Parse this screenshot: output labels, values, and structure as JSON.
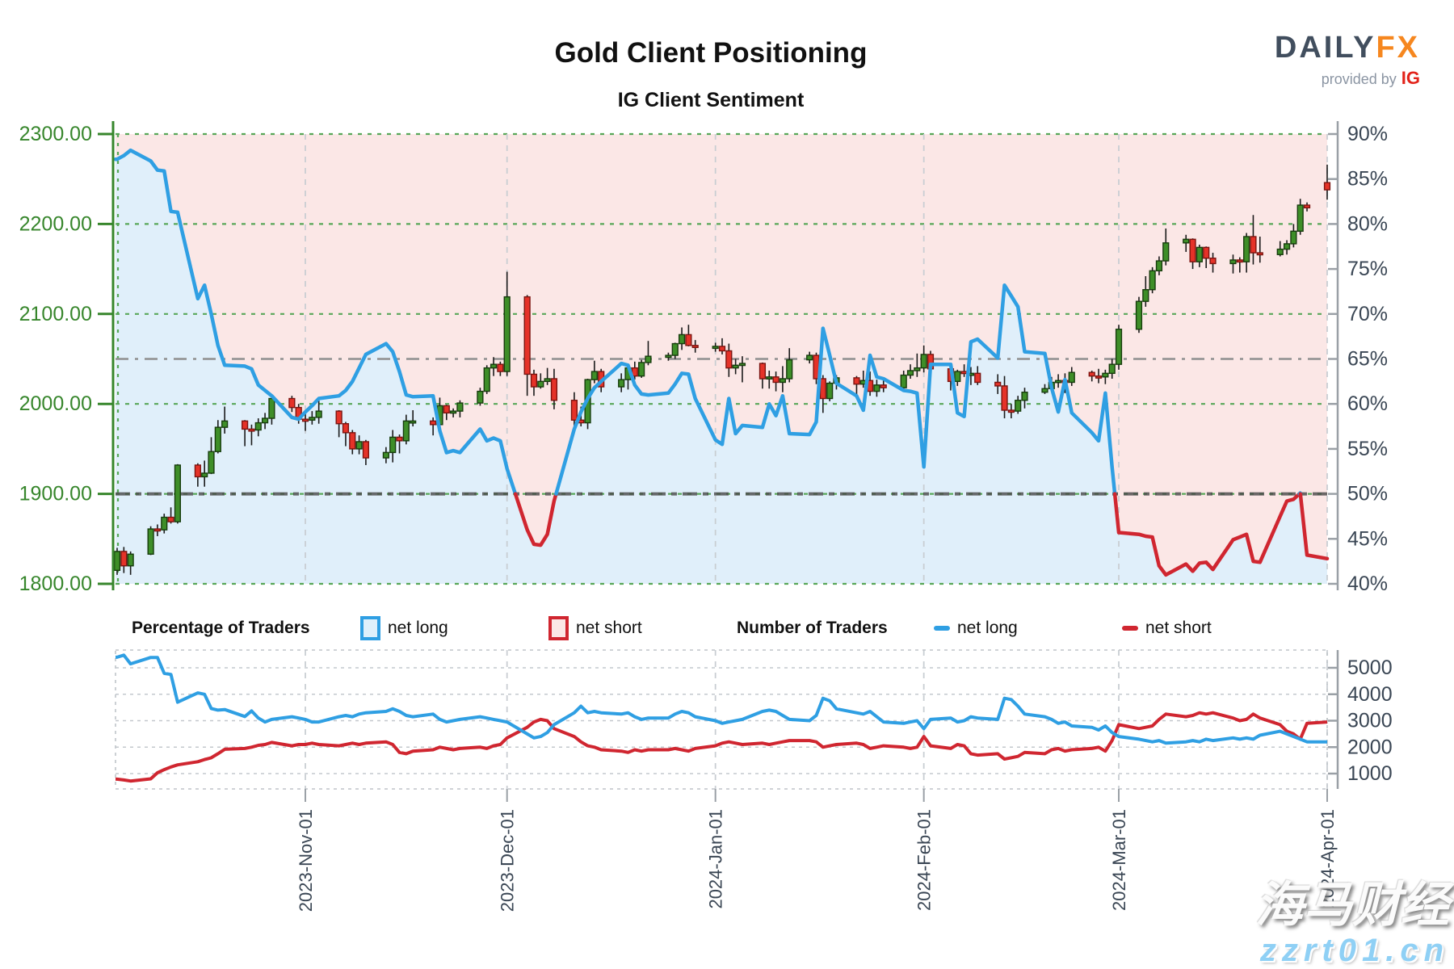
{
  "header": {
    "title": "Gold Client Positioning",
    "subtitle": "IG Client Sentiment",
    "logo": {
      "daily": "DAILY",
      "fx": "FX",
      "provided_by": "provided by",
      "ig": "IG"
    }
  },
  "legend": {
    "pct_group": "Percentage of Traders",
    "count_group": "Number of Traders",
    "net_long": "net long",
    "net_short": "net short"
  },
  "watermark": {
    "line1": "海马财经",
    "line2": "zzrt01.cn"
  },
  "colors": {
    "net_long_line": "#2f9fe3",
    "net_short_line": "#d02630",
    "long_fill": "#e0effa",
    "short_fill": "#fbe7e6",
    "candle_up": "#3e8e28",
    "candle_down": "#e53228",
    "price_axis_green": "#37862c",
    "grid_green": "#58a758",
    "slate_text": "#3a4654",
    "axis_gray": "#9aa0a6",
    "month_grid": "#c9ced3",
    "ref_gray": "#8f8f8f",
    "ref_dark": "#474747"
  },
  "chart_data": {
    "type": "candlestick+line",
    "title": "Gold Client Positioning",
    "subtitle": "IG Client Sentiment",
    "legend_position": "between-panels",
    "grid": true,
    "x_axis": {
      "tick_dates": [
        "2023-11-01",
        "2023-12-01",
        "2024-01-01",
        "2024-02-01",
        "2024-03-01",
        "2024-04-01"
      ],
      "tick_labels": [
        "2023-Nov-01",
        "2023-Dec-01",
        "2024-Jan-01",
        "2024-Feb-01",
        "2024-Mar-01",
        "2024-Apr-01"
      ]
    },
    "main_panel": {
      "price_axis": {
        "side": "left",
        "min": 1800,
        "max": 2300,
        "tick_labels": [
          "2300.00",
          "2200.00",
          "2100.00",
          "2000.00",
          "1900.00",
          "1800.00"
        ]
      },
      "pct_axis": {
        "side": "right",
        "min": 40,
        "max": 90,
        "tick_step": 5,
        "tick_labels": [
          "90%",
          "85%",
          "80%",
          "75%",
          "70%",
          "65%",
          "60%",
          "55%",
          "50%",
          "45%",
          "40%"
        ]
      },
      "reference_lines_pct": [
        {
          "value": 65,
          "style": "gray-dashdot"
        },
        {
          "value": 50,
          "style": "dark-dashdot"
        }
      ],
      "sentiment_rule": "net_long_pct drawn blue when >= 50, red when < 50; area below line shaded blue, above line shaded pink"
    },
    "count_panel": {
      "count_axis": {
        "side": "right",
        "tick_labels": [
          "5000",
          "4000",
          "3000",
          "2000",
          "1000"
        ],
        "tick_values": [
          5000,
          4000,
          3000,
          2000,
          1000
        ]
      },
      "series_names": [
        "net long",
        "net short"
      ]
    },
    "dates": [
      "2023-10-04",
      "2023-10-05",
      "2023-10-06",
      "2023-10-09",
      "2023-10-10",
      "2023-10-11",
      "2023-10-12",
      "2023-10-13",
      "2023-10-16",
      "2023-10-17",
      "2023-10-18",
      "2023-10-19",
      "2023-10-20",
      "2023-10-23",
      "2023-10-24",
      "2023-10-25",
      "2023-10-26",
      "2023-10-27",
      "2023-10-30",
      "2023-10-31",
      "2023-11-01",
      "2023-11-02",
      "2023-11-03",
      "2023-11-06",
      "2023-11-07",
      "2023-11-08",
      "2023-11-09",
      "2023-11-10",
      "2023-11-13",
      "2023-11-14",
      "2023-11-15",
      "2023-11-16",
      "2023-11-17",
      "2023-11-20",
      "2023-11-21",
      "2023-11-22",
      "2023-11-23",
      "2023-11-24",
      "2023-11-27",
      "2023-11-28",
      "2023-11-29",
      "2023-11-30",
      "2023-12-01",
      "2023-12-04",
      "2023-12-05",
      "2023-12-06",
      "2023-12-07",
      "2023-12-08",
      "2023-12-11",
      "2023-12-12",
      "2023-12-13",
      "2023-12-14",
      "2023-12-15",
      "2023-12-18",
      "2023-12-19",
      "2023-12-20",
      "2023-12-21",
      "2023-12-22",
      "2023-12-25",
      "2023-12-26",
      "2023-12-27",
      "2023-12-28",
      "2023-12-29",
      "2024-01-01",
      "2024-01-02",
      "2024-01-03",
      "2024-01-04",
      "2024-01-05",
      "2024-01-08",
      "2024-01-09",
      "2024-01-10",
      "2024-01-11",
      "2024-01-12",
      "2024-01-15",
      "2024-01-16",
      "2024-01-17",
      "2024-01-18",
      "2024-01-19",
      "2024-01-22",
      "2024-01-23",
      "2024-01-24",
      "2024-01-25",
      "2024-01-26",
      "2024-01-29",
      "2024-01-30",
      "2024-01-31",
      "2024-02-01",
      "2024-02-02",
      "2024-02-05",
      "2024-02-06",
      "2024-02-07",
      "2024-02-08",
      "2024-02-09",
      "2024-02-12",
      "2024-02-13",
      "2024-02-14",
      "2024-02-15",
      "2024-02-16",
      "2024-02-19",
      "2024-02-20",
      "2024-02-21",
      "2024-02-22",
      "2024-02-23",
      "2024-02-26",
      "2024-02-27",
      "2024-02-28",
      "2024-02-29",
      "2024-03-01",
      "2024-03-04",
      "2024-03-05",
      "2024-03-06",
      "2024-03-07",
      "2024-03-08",
      "2024-03-11",
      "2024-03-12",
      "2024-03-13",
      "2024-03-14",
      "2024-03-15",
      "2024-03-18",
      "2024-03-19",
      "2024-03-20",
      "2024-03-21",
      "2024-03-22",
      "2024-03-25",
      "2024-03-26",
      "2024-03-27",
      "2024-03-28",
      "2024-03-29",
      "2024-04-01"
    ],
    "net_long_pct": [
      87.2,
      87.6,
      88.2,
      87.0,
      86.0,
      85.9,
      81.4,
      81.3,
      71.7,
      73.2,
      70.0,
      66.5,
      64.3,
      64.2,
      63.9,
      62.1,
      61.5,
      60.9,
      58.5,
      58.3,
      59.1,
      59.8,
      60.6,
      60.9,
      61.5,
      62.5,
      64.0,
      65.5,
      66.7,
      65.8,
      63.6,
      61.0,
      60.8,
      60.9,
      57.0,
      54.6,
      54.8,
      54.6,
      57.2,
      55.9,
      56.2,
      55.9,
      52.8,
      46.0,
      44.4,
      44.3,
      45.5,
      49.2,
      57.2,
      59.1,
      60.6,
      61.8,
      62.5,
      64.5,
      64.3,
      62.1,
      61.1,
      61.0,
      61.2,
      62.2,
      63.4,
      63.3,
      60.6,
      56.0,
      55.5,
      60.6,
      56.7,
      57.6,
      57.4,
      60.0,
      58.7,
      60.9,
      56.7,
      56.6,
      58.0,
      68.4,
      65.4,
      62.3,
      60.9,
      59.3,
      65.4,
      63.0,
      62.8,
      61.5,
      61.4,
      61.2,
      53.0,
      64.4,
      64.4,
      59.0,
      58.6,
      66.9,
      67.2,
      65.1,
      73.2,
      72.0,
      70.8,
      65.8,
      65.6,
      61.8,
      59.1,
      62.7,
      59.0,
      56.8,
      55.9,
      61.2,
      53.0,
      45.7,
      45.5,
      45.3,
      45.2,
      42.0,
      41.0,
      42.2,
      41.4,
      42.3,
      42.4,
      41.6,
      44.9,
      45.2,
      45.5,
      42.5,
      42.4,
      47.5,
      49.2,
      49.4,
      50.1,
      43.2,
      42.8
    ],
    "ohlc": [
      [
        1815,
        1840,
        1810,
        1836
      ],
      [
        1836,
        1841,
        1812,
        1820
      ],
      [
        1820,
        1836,
        1810,
        1833
      ],
      [
        1833,
        1864,
        1832,
        1861
      ],
      [
        1861,
        1866,
        1853,
        1860
      ],
      [
        1860,
        1878,
        1856,
        1874
      ],
      [
        1874,
        1885,
        1867,
        1869
      ],
      [
        1869,
        1933,
        1867,
        1932
      ],
      [
        1932,
        1934,
        1908,
        1919
      ],
      [
        1919,
        1937,
        1908,
        1923
      ],
      [
        1923,
        1963,
        1922,
        1947
      ],
      [
        1947,
        1982,
        1945,
        1974
      ],
      [
        1974,
        1997,
        1967,
        1981
      ],
      [
        1981,
        1982,
        1953,
        1972
      ],
      [
        1972,
        1977,
        1954,
        1971
      ],
      [
        1971,
        1984,
        1964,
        1979
      ],
      [
        1979,
        1990,
        1972,
        1984
      ],
      [
        1984,
        2009,
        1977,
        2006
      ],
      [
        2006,
        2009,
        1991,
        1996
      ],
      [
        1996,
        2000,
        1978,
        1983
      ],
      [
        1983,
        1992,
        1970,
        1982
      ],
      [
        1982,
        1992,
        1977,
        1985
      ],
      [
        1985,
        2004,
        1978,
        1992
      ],
      [
        1992,
        1993,
        1963,
        1978
      ],
      [
        1978,
        1980,
        1953,
        1968
      ],
      [
        1968,
        1971,
        1944,
        1950
      ],
      [
        1950,
        1965,
        1944,
        1958
      ],
      [
        1958,
        1960,
        1932,
        1940
      ],
      [
        1940,
        1952,
        1934,
        1946
      ],
      [
        1946,
        1971,
        1935,
        1963
      ],
      [
        1963,
        1966,
        1945,
        1959
      ],
      [
        1959,
        1988,
        1955,
        1981
      ],
      [
        1981,
        1993,
        1975,
        1981
      ],
      [
        1981,
        1985,
        1965,
        1977
      ],
      [
        1977,
        2007,
        1975,
        1998
      ],
      [
        1998,
        1999,
        1982,
        1990
      ],
      [
        1990,
        1995,
        1985,
        1992
      ],
      [
        1992,
        2004,
        1985,
        2001
      ],
      [
        2001,
        2018,
        1998,
        2014
      ],
      [
        2014,
        2043,
        2011,
        2040
      ],
      [
        2040,
        2052,
        2031,
        2044
      ],
      [
        2044,
        2047,
        2031,
        2036
      ],
      [
        2036,
        2147,
        2031,
        2119
      ],
      [
        2119,
        2121,
        2009,
        2033
      ],
      [
        2033,
        2038,
        2009,
        2019
      ],
      [
        2019,
        2034,
        2017,
        2025
      ],
      [
        2025,
        2040,
        2021,
        2028
      ],
      [
        2028,
        2039,
        1994,
        2004
      ],
      [
        2004,
        2013,
        1975,
        1982
      ],
      [
        1982,
        1997,
        1975,
        1979
      ],
      [
        1979,
        2028,
        1972,
        2027
      ],
      [
        2027,
        2048,
        2023,
        2036
      ],
      [
        2036,
        2039,
        2013,
        2019
      ],
      [
        2019,
        2034,
        2013,
        2027
      ],
      [
        2027,
        2041,
        2016,
        2040
      ],
      [
        2040,
        2047,
        2027,
        2031
      ],
      [
        2031,
        2049,
        2029,
        2046
      ],
      [
        2046,
        2070,
        2043,
        2053
      ],
      [
        2053,
        2057,
        2048,
        2054
      ],
      [
        2054,
        2068,
        2050,
        2067
      ],
      [
        2067,
        2085,
        2060,
        2077
      ],
      [
        2077,
        2088,
        2064,
        2065
      ],
      [
        2065,
        2071,
        2057,
        2063
      ],
      [
        2063,
        2068,
        2058,
        2064
      ],
      [
        2064,
        2073,
        2055,
        2059
      ],
      [
        2059,
        2067,
        2030,
        2040
      ],
      [
        2040,
        2050,
        2033,
        2043
      ],
      [
        2043,
        2053,
        2024,
        2045
      ],
      [
        2045,
        2046,
        2017,
        2028
      ],
      [
        2028,
        2037,
        2017,
        2030
      ],
      [
        2030,
        2036,
        2014,
        2024
      ],
      [
        2024,
        2042,
        2013,
        2028
      ],
      [
        2028,
        2062,
        2024,
        2049
      ],
      [
        2049,
        2058,
        2045,
        2054
      ],
      [
        2054,
        2057,
        2022,
        2028
      ],
      [
        2028,
        2032,
        1990,
        2006
      ],
      [
        2006,
        2025,
        2003,
        2023
      ],
      [
        2023,
        2032,
        2016,
        2029
      ],
      [
        2029,
        2031,
        2010,
        2022
      ],
      [
        2022,
        2037,
        2018,
        2026
      ],
      [
        2026,
        2036,
        2009,
        2014
      ],
      [
        2014,
        2027,
        2008,
        2021
      ],
      [
        2021,
        2028,
        2013,
        2018
      ],
      [
        2018,
        2037,
        2015,
        2032
      ],
      [
        2032,
        2044,
        2028,
        2037
      ],
      [
        2037,
        2056,
        2030,
        2040
      ],
      [
        2040,
        2065,
        2035,
        2055
      ],
      [
        2055,
        2059,
        2029,
        2039
      ],
      [
        2039,
        2042,
        2015,
        2025
      ],
      [
        2025,
        2038,
        2020,
        2036
      ],
      [
        2036,
        2044,
        2030,
        2034
      ],
      [
        2034,
        2041,
        2021,
        2034
      ],
      [
        2034,
        2042,
        2021,
        2024
      ],
      [
        2024,
        2033,
        2011,
        2020
      ],
      [
        2020,
        2031,
        1984,
        1993
      ],
      [
        1993,
        2000,
        1984,
        1992
      ],
      [
        1992,
        2009,
        1989,
        2004
      ],
      [
        2004,
        2018,
        1995,
        2013
      ],
      [
        2013,
        2022,
        2011,
        2017
      ],
      [
        2017,
        2030,
        2015,
        2024
      ],
      [
        2024,
        2033,
        2018,
        2026
      ],
      [
        2026,
        2034,
        2012,
        2024
      ],
      [
        2024,
        2041,
        2020,
        2035
      ],
      [
        2035,
        2037,
        2025,
        2031
      ],
      [
        2031,
        2039,
        2023,
        2030
      ],
      [
        2030,
        2038,
        2022,
        2034
      ],
      [
        2034,
        2050,
        2028,
        2044
      ],
      [
        2044,
        2088,
        2038,
        2083
      ],
      [
        2083,
        2119,
        2079,
        2114
      ],
      [
        2114,
        2142,
        2108,
        2127
      ],
      [
        2127,
        2152,
        2123,
        2148
      ],
      [
        2148,
        2164,
        2143,
        2159
      ],
      [
        2159,
        2195,
        2154,
        2179
      ],
      [
        2179,
        2188,
        2169,
        2183
      ],
      [
        2183,
        2184,
        2150,
        2158
      ],
      [
        2158,
        2177,
        2152,
        2174
      ],
      [
        2174,
        2175,
        2151,
        2162
      ],
      [
        2162,
        2168,
        2146,
        2156
      ],
      [
        2156,
        2166,
        2145,
        2160
      ],
      [
        2160,
        2163,
        2146,
        2158
      ],
      [
        2158,
        2190,
        2146,
        2186
      ],
      [
        2186,
        2210,
        2155,
        2168
      ],
      [
        2168,
        2186,
        2157,
        2166
      ],
      [
        2166,
        2181,
        2164,
        2172
      ],
      [
        2172,
        2182,
        2166,
        2178
      ],
      [
        2178,
        2200,
        2174,
        2192
      ],
      [
        2192,
        2228,
        2188,
        2221
      ],
      [
        2221,
        2224,
        2214,
        2218
      ],
      [
        2246,
        2266,
        2227,
        2238
      ]
    ],
    "net_long_count": [
      5400,
      5480,
      5150,
      5390,
      5390,
      4790,
      4750,
      3700,
      4050,
      4000,
      3460,
      3400,
      3420,
      3160,
      3370,
      3100,
      2950,
      3050,
      3150,
      3100,
      3050,
      2950,
      2950,
      3150,
      3200,
      3150,
      3250,
      3300,
      3350,
      3450,
      3350,
      3200,
      3150,
      3250,
      3050,
      2950,
      3000,
      3050,
      3150,
      3100,
      3050,
      3000,
      2950,
      2500,
      2350,
      2400,
      2550,
      2850,
      3300,
      3550,
      3300,
      3350,
      3300,
      3250,
      3300,
      3150,
      3050,
      3100,
      3100,
      3250,
      3350,
      3300,
      3150,
      3000,
      2900,
      2950,
      3000,
      3050,
      3350,
      3400,
      3350,
      3200,
      3050,
      3000,
      3200,
      3850,
      3750,
      3450,
      3300,
      3250,
      3350,
      3150,
      2950,
      2900,
      2950,
      3000,
      2700,
      3050,
      3100,
      2950,
      3000,
      3150,
      3100,
      3050,
      3850,
      3800,
      3550,
      3250,
      3150,
      3050,
      2900,
      2950,
      2800,
      2750,
      2650,
      2800,
      2550,
      2400,
      2300,
      2250,
      2200,
      2250,
      2150,
      2200,
      2250,
      2200,
      2300,
      2250,
      2350,
      2300,
      2350,
      2300,
      2450,
      2600,
      2500,
      2400,
      2300,
      2200,
      2200
    ],
    "net_short_count": [
      790,
      760,
      720,
      800,
      1030,
      1150,
      1250,
      1330,
      1450,
      1530,
      1600,
      1750,
      1920,
      1950,
      2000,
      2070,
      2100,
      2180,
      2050,
      2100,
      2100,
      2150,
      2100,
      2050,
      2100,
      2150,
      2100,
      2150,
      2200,
      2100,
      1800,
      1750,
      1850,
      1900,
      2000,
      1950,
      1900,
      1950,
      2000,
      1950,
      2050,
      2100,
      2350,
      2750,
      2950,
      3050,
      3000,
      2700,
      2400,
      2200,
      2050,
      2000,
      1900,
      1850,
      1800,
      1900,
      1850,
      1900,
      1900,
      1950,
      1900,
      1850,
      1950,
      2050,
      2150,
      2200,
      2150,
      2100,
      2150,
      2100,
      2150,
      2200,
      2250,
      2250,
      2200,
      2000,
      2050,
      2100,
      2150,
      2100,
      1950,
      2000,
      2050,
      2000,
      1950,
      2000,
      2400,
      2050,
      1950,
      2100,
      2050,
      1750,
      1700,
      1750,
      1550,
      1600,
      1650,
      1800,
      1750,
      1900,
      1950,
      1850,
      1900,
      1950,
      2000,
      1850,
      2250,
      2850,
      2700,
      2750,
      2800,
      3050,
      3250,
      3150,
      3200,
      3300,
      3250,
      3300,
      3100,
      3000,
      3050,
      3250,
      3100,
      2850,
      2600,
      2500,
      2300,
      2900,
      2950
    ]
  }
}
